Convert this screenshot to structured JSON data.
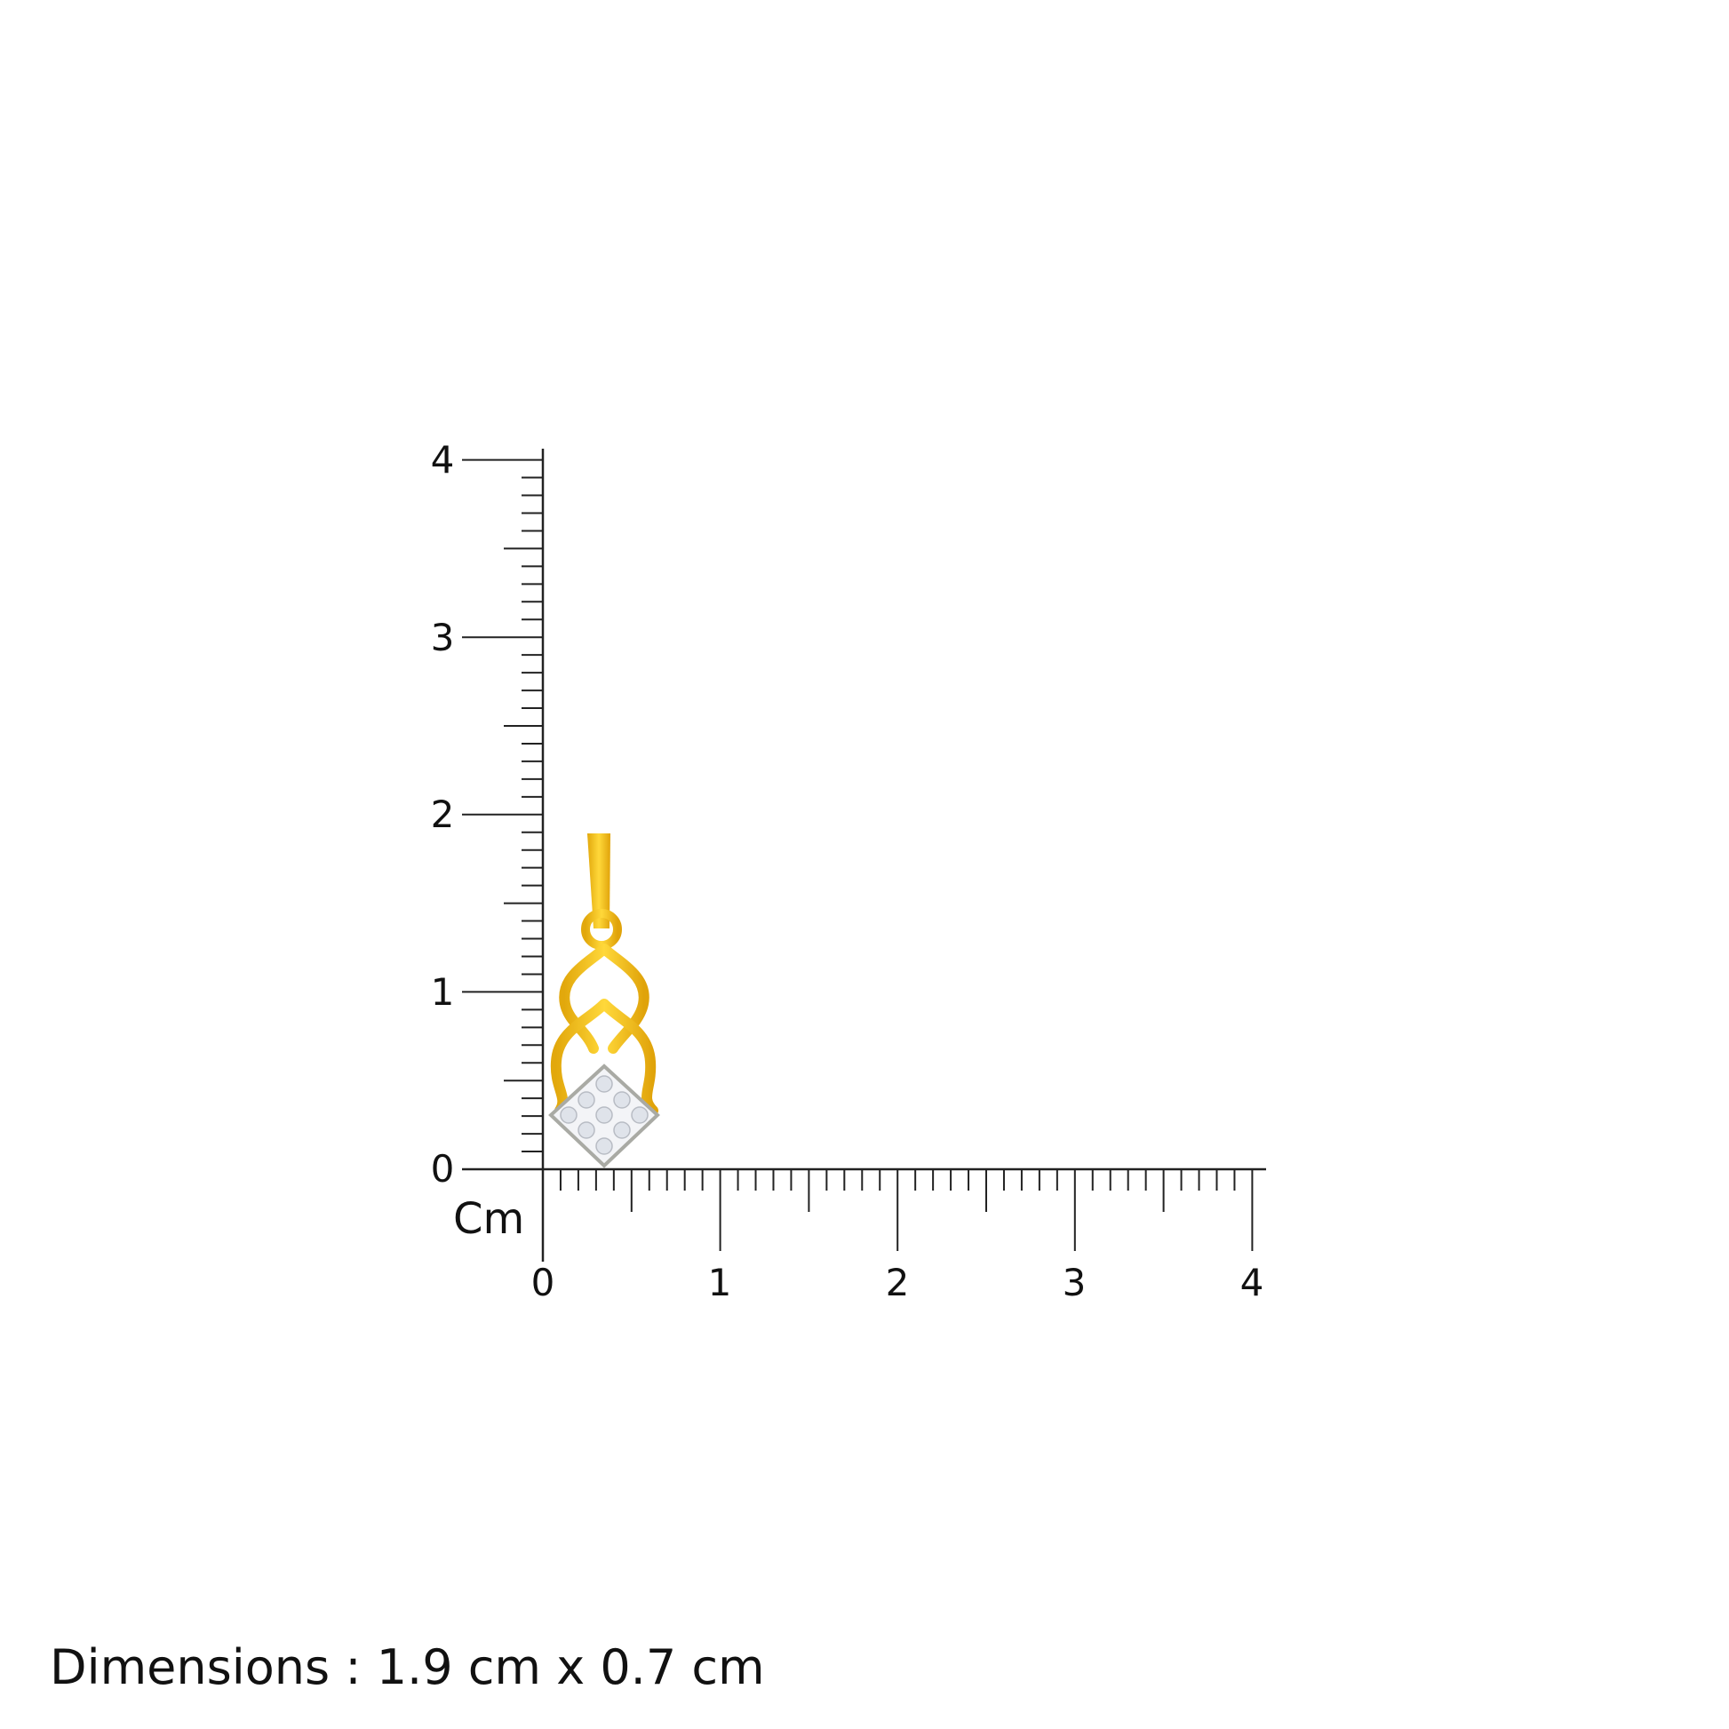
{
  "ruler": {
    "unit_label": "Cm",
    "x_labels": [
      "0",
      "1",
      "2",
      "3",
      "4"
    ],
    "y_labels": [
      "0",
      "1",
      "2",
      "3",
      "4"
    ],
    "range_cm": [
      0,
      4
    ],
    "minor_step_cm": 0.1
  },
  "product": {
    "metal_color": "#f2c21a",
    "stone_color": "#e6e9ee",
    "height_cm": 1.9,
    "width_cm": 0.7
  },
  "footer": {
    "dimensions_text": "Dimensions : 1.9 cm x 0.7 cm"
  }
}
